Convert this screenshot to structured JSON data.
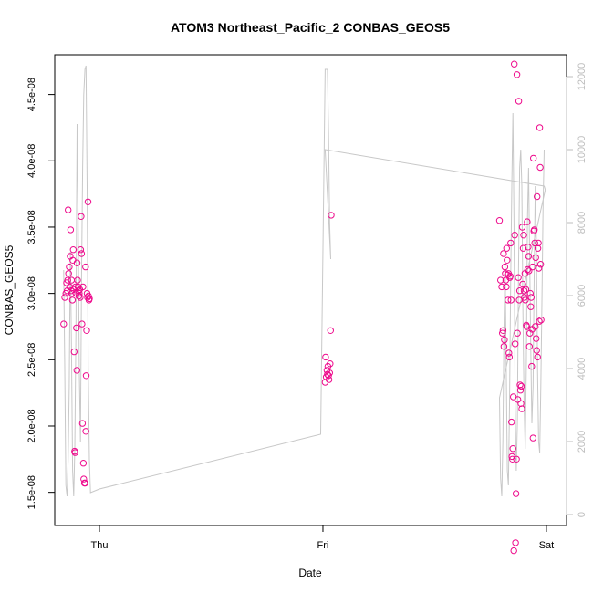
{
  "chart_data": {
    "type": "scatter",
    "title": "ATOM3 Northeast_Pacific_2 CONBAS_GEOS5",
    "xlabel": "Date",
    "ylabel": "CONBAS_GEOS5",
    "x_ticks": [
      {
        "label": "Thu",
        "value": 1.0
      },
      {
        "label": "Fri",
        "value": 2.0
      },
      {
        "label": "Sat",
        "value": 3.0
      }
    ],
    "xlim": [
      0.8,
      3.09
    ],
    "ylim": [
      1.25e-08,
      4.8e-08
    ],
    "y_ticks": [
      "1.5e-08",
      "2.0e-08",
      "2.5e-08",
      "3.0e-08",
      "3.5e-08",
      "4.0e-08",
      "4.5e-08"
    ],
    "y_right_ylim": [
      -300,
      12600
    ],
    "y_right_ticks": [
      "0",
      "2000",
      "4000",
      "6000",
      "8000",
      "10000",
      "12000"
    ],
    "grid": false,
    "colors": {
      "points": "#ee0a8c",
      "line": "#c8c8c8",
      "right_axis": "#bdbdbd"
    },
    "series": [
      {
        "marker": "open-circle",
        "points": [
          [
            0.84,
            2.77e-08
          ],
          [
            0.845,
            2.97e-08
          ],
          [
            0.85,
            3e-08
          ],
          [
            0.853,
            3.08e-08
          ],
          [
            0.856,
            3.02e-08
          ],
          [
            0.858,
            3.1e-08
          ],
          [
            0.86,
            3.63e-08
          ],
          [
            0.862,
            3.15e-08
          ],
          [
            0.865,
            3.2e-08
          ],
          [
            0.867,
            3.05e-08
          ],
          [
            0.869,
            3.28e-08
          ],
          [
            0.871,
            3.48e-08
          ],
          [
            0.873,
            3.02e-08
          ],
          [
            0.875,
            3.1e-08
          ],
          [
            0.877,
            3e-08
          ],
          [
            0.879,
            2.95e-08
          ],
          [
            0.881,
            3.25e-08
          ],
          [
            0.883,
            3.33e-08
          ],
          [
            0.885,
            3.03e-08
          ],
          [
            0.887,
            2.56e-08
          ],
          [
            0.889,
            1.81e-08
          ],
          [
            0.891,
            1.8e-08
          ],
          [
            0.893,
            3.05e-08
          ],
          [
            0.895,
            3e-08
          ],
          [
            0.897,
            2.74e-08
          ],
          [
            0.899,
            2.42e-08
          ],
          [
            0.9,
            3.23e-08
          ],
          [
            0.902,
            3.1e-08
          ],
          [
            0.904,
            3.05e-08
          ],
          [
            0.906,
            3.02e-08
          ],
          [
            0.908,
            2.98e-08
          ],
          [
            0.91,
            3e-08
          ],
          [
            0.912,
            3.03e-08
          ],
          [
            0.914,
            2.97e-08
          ],
          [
            0.916,
            3.33e-08
          ],
          [
            0.918,
            3.58e-08
          ],
          [
            0.92,
            3.3e-08
          ],
          [
            0.922,
            2.77e-08
          ],
          [
            0.924,
            2.02e-08
          ],
          [
            0.926,
            3.05e-08
          ],
          [
            0.928,
            1.72e-08
          ],
          [
            0.93,
            1.6e-08
          ],
          [
            0.933,
            1.57e-08
          ],
          [
            0.936,
            1.57e-08
          ],
          [
            0.938,
            3.2e-08
          ],
          [
            0.939,
            1.96e-08
          ],
          [
            0.941,
            2.38e-08
          ],
          [
            0.943,
            2.72e-08
          ],
          [
            0.945,
            3e-08
          ],
          [
            0.947,
            2.97e-08
          ],
          [
            0.949,
            3.69e-08
          ],
          [
            0.951,
            2.98e-08
          ],
          [
            0.953,
            2.95e-08
          ],
          [
            0.955,
            2.96e-08
          ],
          [
            2.01,
            2.33e-08
          ],
          [
            2.012,
            2.52e-08
          ],
          [
            2.015,
            2.37e-08
          ],
          [
            2.018,
            2.42e-08
          ],
          [
            2.02,
            2.39e-08
          ],
          [
            2.022,
            2.45e-08
          ],
          [
            2.025,
            2.38e-08
          ],
          [
            2.027,
            2.35e-08
          ],
          [
            2.03,
            2.4e-08
          ],
          [
            2.032,
            2.47e-08
          ],
          [
            2.034,
            2.72e-08
          ],
          [
            2.037,
            3.59e-08
          ],
          [
            2.79,
            3.55e-08
          ],
          [
            2.795,
            3.1e-08
          ],
          [
            2.8,
            3.05e-08
          ],
          [
            2.803,
            2.7e-08
          ],
          [
            2.806,
            2.72e-08
          ],
          [
            2.808,
            3.3e-08
          ],
          [
            2.81,
            2.6e-08
          ],
          [
            2.812,
            2.65e-08
          ],
          [
            2.814,
            3.2e-08
          ],
          [
            2.816,
            3.15e-08
          ],
          [
            2.818,
            3.1e-08
          ],
          [
            2.82,
            3.05e-08
          ],
          [
            2.822,
            3.34e-08
          ],
          [
            2.824,
            3.25e-08
          ],
          [
            2.826,
            3.14e-08
          ],
          [
            2.828,
            2.95e-08
          ],
          [
            2.83,
            3.15e-08
          ],
          [
            2.832,
            2.55e-08
          ],
          [
            2.834,
            2.52e-08
          ],
          [
            2.836,
            3.12e-08
          ],
          [
            2.838,
            3.13e-08
          ],
          [
            2.84,
            3.38e-08
          ],
          [
            2.842,
            2.95e-08
          ],
          [
            2.844,
            2.03e-08
          ],
          [
            2.846,
            1.77e-08
          ],
          [
            2.848,
            1.75e-08
          ],
          [
            2.85,
            1.83e-08
          ],
          [
            2.852,
            2.22e-08
          ],
          [
            2.854,
            1.06e-08
          ],
          [
            2.856,
            4.73e-08
          ],
          [
            2.858,
            3.44e-08
          ],
          [
            2.86,
            2.62e-08
          ],
          [
            2.862,
            1.12e-08
          ],
          [
            2.864,
            1.49e-08
          ],
          [
            2.866,
            1.75e-08
          ],
          [
            2.868,
            4.65e-08
          ],
          [
            2.87,
            2.7e-08
          ],
          [
            2.872,
            2.2e-08
          ],
          [
            2.874,
            3.12e-08
          ],
          [
            2.876,
            4.45e-08
          ],
          [
            2.878,
            2.95e-08
          ],
          [
            2.88,
            3.02e-08
          ],
          [
            2.882,
            2.31e-08
          ],
          [
            2.884,
            2.27e-08
          ],
          [
            2.886,
            2.17e-08
          ],
          [
            2.888,
            2.3e-08
          ],
          [
            2.89,
            2.13e-08
          ],
          [
            2.892,
            3.5e-08
          ],
          [
            2.894,
            3.07e-08
          ],
          [
            2.896,
            3.34e-08
          ],
          [
            2.898,
            3.44e-08
          ],
          [
            2.9,
            3.02e-08
          ],
          [
            2.902,
            2.97e-08
          ],
          [
            2.904,
            3.15e-08
          ],
          [
            2.906,
            2.95e-08
          ],
          [
            2.908,
            3.03e-08
          ],
          [
            2.91,
            2.76e-08
          ],
          [
            2.912,
            2.75e-08
          ],
          [
            2.914,
            3.54e-08
          ],
          [
            2.916,
            3.18e-08
          ],
          [
            2.918,
            3.35e-08
          ],
          [
            2.92,
            3.28e-08
          ],
          [
            2.922,
            3.17e-08
          ],
          [
            2.924,
            2.6e-08
          ],
          [
            2.926,
            2.7e-08
          ],
          [
            2.928,
            3e-08
          ],
          [
            2.93,
            2.9e-08
          ],
          [
            2.932,
            2.97e-08
          ],
          [
            2.934,
            2.45e-08
          ],
          [
            2.936,
            2.73e-08
          ],
          [
            2.938,
            3.2e-08
          ],
          [
            2.94,
            1.91e-08
          ],
          [
            2.942,
            4.02e-08
          ],
          [
            2.944,
            3.47e-08
          ],
          [
            2.946,
            3.48e-08
          ],
          [
            2.948,
            3.38e-08
          ],
          [
            2.95,
            2.75e-08
          ],
          [
            2.952,
            3.27e-08
          ],
          [
            2.954,
            2.66e-08
          ],
          [
            2.956,
            2.57e-08
          ],
          [
            2.958,
            3.73e-08
          ],
          [
            2.96,
            2.52e-08
          ],
          [
            2.962,
            3.34e-08
          ],
          [
            2.964,
            3.38e-08
          ],
          [
            2.966,
            3.19e-08
          ],
          [
            2.968,
            2.79e-08
          ],
          [
            2.97,
            4.25e-08
          ],
          [
            2.972,
            3.95e-08
          ],
          [
            2.974,
            3.22e-08
          ],
          [
            2.976,
            2.8e-08
          ]
        ]
      },
      {
        "axis": "right",
        "marker": "line",
        "points": [
          [
            0.84,
            6700
          ],
          [
            0.845,
            4000
          ],
          [
            0.85,
            800
          ],
          [
            0.855,
            500
          ],
          [
            0.86,
            1500
          ],
          [
            0.865,
            3500
          ],
          [
            0.87,
            7200
          ],
          [
            0.875,
            4500
          ],
          [
            0.88,
            1200
          ],
          [
            0.885,
            500
          ],
          [
            0.89,
            1800
          ],
          [
            0.895,
            5200
          ],
          [
            0.9,
            10700
          ],
          [
            0.905,
            8000
          ],
          [
            0.91,
            4000
          ],
          [
            0.915,
            2000
          ],
          [
            0.92,
            6500
          ],
          [
            0.925,
            9500
          ],
          [
            0.93,
            11500
          ],
          [
            0.935,
            12200
          ],
          [
            0.94,
            12300
          ],
          [
            0.945,
            9000
          ],
          [
            0.95,
            4000
          ],
          [
            0.955,
            1500
          ],
          [
            0.96,
            600
          ],
          [
            1.0,
            700
          ],
          [
            1.99,
            2200
          ],
          [
            2.01,
            12200
          ],
          [
            2.02,
            12200
          ],
          [
            2.025,
            10500
          ],
          [
            2.03,
            8000
          ],
          [
            2.035,
            7000
          ],
          [
            2.01,
            10000
          ],
          [
            2.99,
            9000
          ],
          [
            2.995,
            8900
          ],
          [
            2.79,
            3200
          ],
          [
            2.795,
            1000
          ],
          [
            2.8,
            500
          ],
          [
            2.805,
            2000
          ],
          [
            2.81,
            5000
          ],
          [
            2.815,
            7000
          ],
          [
            2.82,
            4000
          ],
          [
            2.825,
            1200
          ],
          [
            2.83,
            800
          ],
          [
            2.835,
            3000
          ],
          [
            2.84,
            6500
          ],
          [
            2.845,
            9000
          ],
          [
            2.85,
            11000
          ],
          [
            2.855,
            8000
          ],
          [
            2.86,
            3000
          ],
          [
            2.865,
            1200
          ],
          [
            2.87,
            2500
          ],
          [
            2.875,
            6500
          ],
          [
            2.88,
            9500
          ],
          [
            2.885,
            10000
          ],
          [
            2.89,
            9000
          ],
          [
            2.895,
            5500
          ],
          [
            2.9,
            3000
          ],
          [
            2.905,
            1800
          ],
          [
            2.91,
            4000
          ],
          [
            2.915,
            8000
          ],
          [
            2.92,
            9500
          ],
          [
            2.925,
            7000
          ],
          [
            2.93,
            4500
          ],
          [
            2.935,
            2500
          ],
          [
            2.94,
            3500
          ],
          [
            2.945,
            6500
          ],
          [
            2.95,
            9000
          ],
          [
            2.955,
            7500
          ],
          [
            2.96,
            4000
          ],
          [
            2.965,
            2000
          ],
          [
            2.97,
            1700
          ],
          [
            2.975,
            3500
          ],
          [
            2.98,
            6000
          ],
          [
            2.985,
            8500
          ],
          [
            2.99,
            10000
          ]
        ]
      }
    ]
  }
}
